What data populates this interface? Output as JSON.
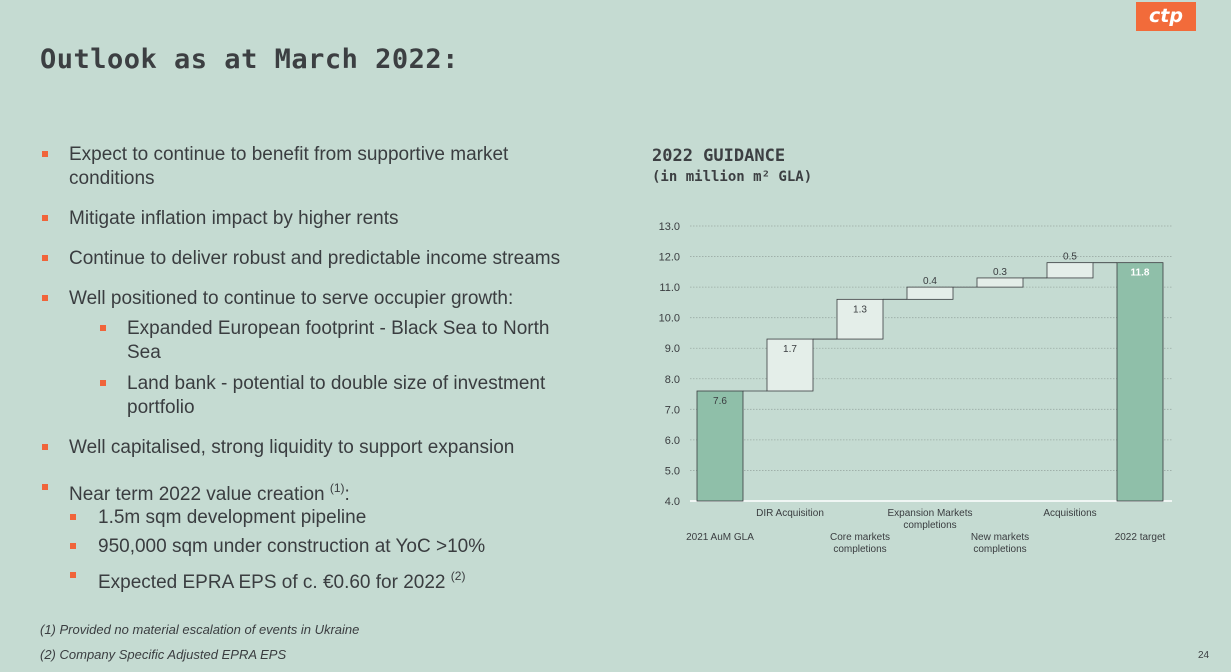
{
  "page": {
    "title": "Outlook as at March 2022:",
    "logo": "ctp",
    "page_number": "24"
  },
  "bullets": [
    {
      "text": "Expect to continue to benefit from supportive market conditions",
      "lines": [
        "Expect to continue to benefit from supportive market",
        "conditions"
      ],
      "level": 1
    },
    {
      "text": "Mitigate inflation impact by higher rents",
      "lines": [
        "Mitigate inflation impact by higher rents"
      ],
      "level": 1
    },
    {
      "text": "Continue to deliver robust and predictable income streams",
      "lines": [
        "Continue to deliver robust and predictable income streams"
      ],
      "level": 1
    },
    {
      "text": "Well positioned to continue to serve occupier growth:",
      "lines": [
        "Well positioned to continue to serve occupier growth:"
      ],
      "level": 1
    },
    {
      "text": "Expanded European footprint - Black Sea to North Sea",
      "lines": [
        "Expanded European footprint - Black Sea to North",
        "Sea"
      ],
      "level": 2
    },
    {
      "text": "Land bank - potential to double size of investment portfolio",
      "lines": [
        "Land bank - potential to double size of investment",
        "portfolio"
      ],
      "level": 2
    },
    {
      "text": "Well capitalised, strong liquidity to support expansion",
      "lines": [
        "Well capitalised, strong liquidity to support expansion"
      ],
      "level": 1
    },
    {
      "text": "Near term 2022 value creation",
      "lines": [
        "Near term 2022 value creation"
      ],
      "sup": "(1)",
      "suffix": ":",
      "level": 1
    },
    {
      "text": "1.5m sqm development pipeline",
      "lines": [
        "1.5m sqm development pipeline"
      ],
      "level": 3
    },
    {
      "text": "950,000 sqm under construction at YoC >10%",
      "lines": [
        "950,000 sqm under construction at YoC >10%"
      ],
      "level": 3
    },
    {
      "text": "Expected EPRA EPS of c. €0.60 for 2022",
      "lines": [
        "Expected EPRA EPS of c. €0.60 for 2022"
      ],
      "sup": "(2)",
      "level": 3
    }
  ],
  "footnotes": [
    "(1) Provided no material escalation of events in Ukraine",
    "(2) Company Specific Adjusted EPRA EPS"
  ],
  "chart_data": {
    "type": "bar",
    "subtype": "waterfall",
    "title": "2022 GUIDANCE",
    "subtitle": "(in million m² GLA)",
    "categories": [
      [
        "2021 AuM GLA"
      ],
      [
        "DIR Acquisition"
      ],
      [
        "Core markets",
        "completions"
      ],
      [
        "Expansion Markets",
        "completions"
      ],
      [
        "New markets",
        "completions"
      ],
      [
        "Acquisitions"
      ],
      [
        "2022 target"
      ]
    ],
    "category_label_row": [
      "bottom",
      "top",
      "bottom",
      "top",
      "bottom",
      "top",
      "bottom"
    ],
    "values": [
      7.6,
      1.7,
      1.3,
      0.4,
      0.3,
      0.5,
      11.8
    ],
    "value_labels": [
      "7.6",
      "1.7",
      "1.3",
      "0.4",
      "0.3",
      "0.5",
      "11.8"
    ],
    "kinds": [
      "total",
      "increment",
      "increment",
      "increment",
      "increment",
      "increment",
      "total"
    ],
    "ylim": [
      4.0,
      13.0
    ],
    "yticks": [
      "4.0",
      "5.0",
      "6.0",
      "7.0",
      "8.0",
      "9.0",
      "10.0",
      "11.0",
      "12.0",
      "13.0"
    ],
    "grid": true,
    "colors": {
      "total": "#8fbfa9",
      "increment": "#e4eee9",
      "outline": "#3a3d40",
      "grid": "#9aaba4",
      "accent": "#f0643a"
    }
  }
}
